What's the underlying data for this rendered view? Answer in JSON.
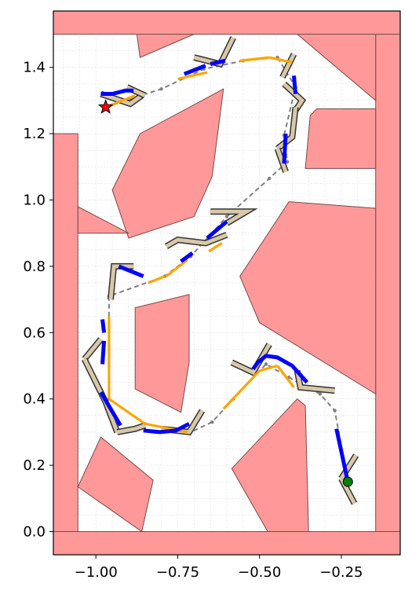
{
  "chart_data": {
    "type": "scatter",
    "title": "",
    "xlabel": "",
    "ylabel": "",
    "xlim": [
      -1.13,
      -0.07
    ],
    "ylim": [
      -0.07,
      1.57
    ],
    "grid": true,
    "x_ticks": [
      -1.0,
      -0.75,
      -0.5,
      -0.25
    ],
    "x_tick_labels": [
      "−1.00",
      "−0.75",
      "−0.50",
      "−0.25"
    ],
    "y_ticks": [
      0.0,
      0.2,
      0.4,
      0.6,
      0.8,
      1.0,
      1.2,
      1.4
    ],
    "y_tick_labels": [
      "0.0",
      "0.2",
      "0.4",
      "0.6",
      "0.8",
      "1.0",
      "1.2",
      "1.4"
    ],
    "colors": {
      "obstacle_fill": "#ff9999",
      "obstacle_edge": "#7a4a4a",
      "path": "#808080",
      "segment_orange": "#ffa500",
      "segment_blue": "#0000ff",
      "arm_fill": "#d8c8a8",
      "arm_edge": "#333333",
      "start_marker": "#ff0000",
      "goal_marker": "#008000"
    },
    "obstacles": [
      {
        "points": [
          [
            -1.13,
            1.5
          ],
          [
            -0.07,
            1.5
          ],
          [
            -0.07,
            1.57
          ],
          [
            -1.13,
            1.57
          ]
        ]
      },
      {
        "points": [
          [
            -1.13,
            -0.07
          ],
          [
            -0.07,
            -0.07
          ],
          [
            -0.07,
            0.0
          ],
          [
            -1.13,
            0.0
          ]
        ]
      },
      {
        "points": [
          [
            -1.13,
            0.0
          ],
          [
            -1.055,
            0.0
          ],
          [
            -1.055,
            1.2
          ],
          [
            -1.13,
            1.2
          ]
        ]
      },
      {
        "points": [
          [
            -0.145,
            0.0
          ],
          [
            -0.07,
            0.0
          ],
          [
            -0.07,
            1.5
          ],
          [
            -0.145,
            1.5
          ]
        ]
      },
      {
        "points": [
          [
            -0.875,
            1.5
          ],
          [
            -0.7,
            1.5
          ],
          [
            -0.865,
            1.43
          ]
        ]
      },
      {
        "points": [
          [
            -0.385,
            1.5
          ],
          [
            -0.145,
            1.5
          ],
          [
            -0.145,
            1.3
          ]
        ]
      },
      {
        "points": [
          [
            -0.95,
            1.03
          ],
          [
            -0.865,
            1.2
          ],
          [
            -0.61,
            1.335
          ],
          [
            -0.645,
            1.07
          ],
          [
            -0.7,
            0.95
          ],
          [
            -0.9,
            0.885
          ]
        ]
      },
      {
        "points": [
          [
            -0.345,
            1.255
          ],
          [
            -0.325,
            1.275
          ],
          [
            -0.145,
            1.275
          ],
          [
            -0.145,
            1.095
          ],
          [
            -0.36,
            1.095
          ]
        ]
      },
      {
        "points": [
          [
            -1.055,
            0.9
          ],
          [
            -1.055,
            0.98
          ],
          [
            -0.9,
            0.9
          ]
        ]
      },
      {
        "points": [
          [
            -0.56,
            0.77
          ],
          [
            -0.41,
            0.995
          ],
          [
            -0.145,
            0.975
          ],
          [
            -0.145,
            0.415
          ],
          [
            -0.5,
            0.63
          ]
        ]
      },
      {
        "points": [
          [
            -0.88,
            0.675
          ],
          [
            -0.715,
            0.715
          ],
          [
            -0.715,
            0.51
          ],
          [
            -0.74,
            0.36
          ],
          [
            -0.88,
            0.43
          ]
        ]
      },
      {
        "points": [
          [
            -0.985,
            0.285
          ],
          [
            -1.055,
            0.135
          ],
          [
            -0.86,
            0.0
          ],
          [
            -0.825,
            0.155
          ]
        ]
      },
      {
        "points": [
          [
            -0.585,
            0.19
          ],
          [
            -0.385,
            0.4
          ],
          [
            -0.36,
            0.38
          ],
          [
            -0.35,
            0.0
          ],
          [
            -0.475,
            0.0
          ]
        ]
      }
    ],
    "path": [
      [
        -0.97,
        1.28
      ],
      [
        -0.8,
        1.335
      ],
      [
        -0.67,
        1.395
      ],
      [
        -0.55,
        1.42
      ],
      [
        -0.445,
        1.43
      ],
      [
        -0.39,
        1.34
      ],
      [
        -0.425,
        1.195
      ],
      [
        -0.415,
        1.115
      ],
      [
        -0.47,
        1.065
      ],
      [
        -0.6,
        0.95
      ],
      [
        -0.71,
        0.83
      ],
      [
        -0.79,
        0.77
      ],
      [
        -0.96,
        0.71
      ],
      [
        -0.96,
        0.4
      ],
      [
        -0.85,
        0.325
      ],
      [
        -0.71,
        0.3
      ],
      [
        -0.645,
        0.33
      ],
      [
        -0.58,
        0.4
      ],
      [
        -0.48,
        0.505
      ],
      [
        -0.41,
        0.465
      ],
      [
        -0.315,
        0.415
      ],
      [
        -0.27,
        0.365
      ],
      [
        -0.23,
        0.15
      ]
    ],
    "orange_segments": [
      [
        [
          -0.97,
          1.28
        ],
        [
          -0.88,
          1.315
        ]
      ],
      [
        [
          -0.75,
          1.365
        ],
        [
          -0.66,
          1.385
        ]
      ],
      [
        [
          -0.56,
          1.42
        ],
        [
          -0.47,
          1.43
        ]
      ],
      [
        [
          -0.47,
          1.43
        ],
        [
          -0.4,
          1.415
        ]
      ],
      [
        [
          -0.72,
          0.82
        ],
        [
          -0.785,
          0.77
        ]
      ],
      [
        [
          -0.84,
          0.75
        ],
        [
          -0.79,
          0.77
        ]
      ],
      [
        [
          -0.615,
          0.87
        ],
        [
          -0.655,
          0.845
        ]
      ],
      [
        [
          -0.96,
          0.65
        ],
        [
          -0.96,
          0.4
        ]
      ],
      [
        [
          -0.96,
          0.4
        ],
        [
          -0.85,
          0.325
        ]
      ],
      [
        [
          -0.85,
          0.325
        ],
        [
          -0.72,
          0.3
        ]
      ],
      [
        [
          -0.61,
          0.37
        ],
        [
          -0.5,
          0.485
        ]
      ],
      [
        [
          -0.5,
          0.485
        ],
        [
          -0.445,
          0.5
        ]
      ],
      [
        [
          -0.445,
          0.5
        ],
        [
          -0.395,
          0.435
        ]
      ]
    ],
    "blue_segments": [
      [
        [
          -0.985,
          1.32
        ],
        [
          -0.95,
          1.32
        ],
        [
          -0.91,
          1.33
        ],
        [
          -0.885,
          1.33
        ]
      ],
      [
        [
          -0.73,
          1.38
        ],
        [
          -0.665,
          1.405
        ]
      ],
      [
        [
          -0.65,
          1.41
        ],
        [
          -0.605,
          1.42
        ]
      ],
      [
        [
          -0.39,
          1.32
        ],
        [
          -0.395,
          1.375
        ]
      ],
      [
        [
          -0.42,
          1.2
        ],
        [
          -0.425,
          1.11
        ]
      ],
      [
        [
          -0.6,
          0.935
        ],
        [
          -0.66,
          0.885
        ]
      ],
      [
        [
          -0.705,
          0.84
        ],
        [
          -0.74,
          0.815
        ]
      ],
      [
        [
          -0.855,
          0.77
        ],
        [
          -0.93,
          0.8
        ]
      ],
      [
        [
          -0.98,
          0.505
        ],
        [
          -0.975,
          0.575
        ]
      ],
      [
        [
          -0.975,
          0.6
        ],
        [
          -0.98,
          0.64
        ]
      ],
      [
        [
          -0.985,
          0.42
        ],
        [
          -0.955,
          0.37
        ],
        [
          -0.925,
          0.32
        ]
      ],
      [
        [
          -0.855,
          0.305
        ],
        [
          -0.805,
          0.3
        ],
        [
          -0.755,
          0.305
        ],
        [
          -0.715,
          0.325
        ]
      ],
      [
        [
          -0.52,
          0.49
        ],
        [
          -0.505,
          0.51
        ],
        [
          -0.48,
          0.53
        ],
        [
          -0.445,
          0.525
        ],
        [
          -0.4,
          0.5
        ],
        [
          -0.355,
          0.45
        ]
      ],
      [
        [
          -0.265,
          0.31
        ],
        [
          -0.23,
          0.15
        ]
      ]
    ],
    "arms": [
      [
        [
          -0.985,
          1.32
        ],
        [
          -0.895,
          1.29
        ],
        [
          -0.86,
          1.315
        ]
      ],
      [
        [
          -0.905,
          1.34
        ],
        [
          -0.85,
          1.315
        ]
      ],
      [
        [
          -0.7,
          1.43
        ],
        [
          -0.62,
          1.41
        ],
        [
          -0.58,
          1.49
        ]
      ],
      [
        [
          -0.43,
          1.37
        ],
        [
          -0.395,
          1.44
        ]
      ],
      [
        [
          -0.425,
          1.35
        ],
        [
          -0.37,
          1.3
        ],
        [
          -0.39,
          1.27
        ]
      ],
      [
        [
          -0.445,
          1.155
        ],
        [
          -0.4,
          1.19
        ],
        [
          -0.39,
          1.28
        ]
      ],
      [
        [
          -0.445,
          1.155
        ],
        [
          -0.42,
          1.085
        ]
      ],
      [
        [
          -0.65,
          0.965
        ],
        [
          -0.54,
          0.965
        ],
        [
          -0.6,
          0.93
        ]
      ],
      [
        [
          -0.785,
          0.86
        ],
        [
          -0.75,
          0.88
        ],
        [
          -0.665,
          0.87
        ],
        [
          -0.6,
          0.895
        ]
      ],
      [
        [
          -0.955,
          0.7
        ],
        [
          -0.945,
          0.8
        ],
        [
          -0.885,
          0.8
        ]
      ],
      [
        [
          -1.035,
          0.52
        ],
        [
          -0.985,
          0.58
        ]
      ],
      [
        [
          -1.035,
          0.52
        ],
        [
          -0.97,
          0.39
        ],
        [
          -0.935,
          0.3
        ]
      ],
      [
        [
          -0.935,
          0.3
        ],
        [
          -0.88,
          0.31
        ],
        [
          -0.85,
          0.32
        ]
      ],
      [
        [
          -0.8,
          0.31
        ],
        [
          -0.715,
          0.3
        ],
        [
          -0.675,
          0.365
        ]
      ],
      [
        [
          -0.585,
          0.51
        ],
        [
          -0.52,
          0.48
        ],
        [
          -0.47,
          0.565
        ]
      ],
      [
        [
          -0.385,
          0.485
        ],
        [
          -0.375,
          0.435
        ],
        [
          -0.27,
          0.425
        ]
      ],
      [
        [
          -0.25,
          0.16
        ],
        [
          -0.21,
          0.085
        ]
      ],
      [
        [
          -0.25,
          0.16
        ],
        [
          -0.205,
          0.23
        ]
      ]
    ],
    "start": {
      "x": -0.97,
      "y": 1.28,
      "marker": "star"
    },
    "goal": {
      "x": -0.23,
      "y": 0.15,
      "marker": "circle"
    }
  }
}
